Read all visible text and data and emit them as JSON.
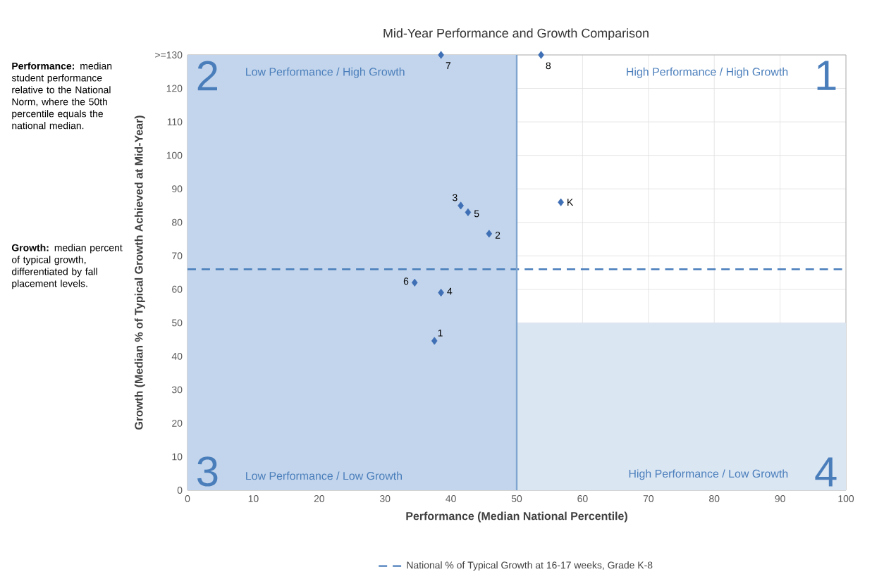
{
  "chart_data": {
    "type": "scatter",
    "title": "Mid-Year Performance and Growth Comparison",
    "xlabel": "Performance (Median National Percentile)",
    "ylabel": "Growth (Median % of Typical Growth Achieved at Mid-Year)",
    "x": [
      37.5,
      45.8,
      41.5,
      38.5,
      42.6,
      34.5,
      38.5,
      53.7,
      56.7
    ],
    "values": [
      44.6,
      76.6,
      85,
      59,
      83,
      62,
      130,
      130,
      86
    ],
    "color": "#3f6fb5",
    "marker": "diamond",
    "grid": true,
    "legend": "bottom",
    "xlim": [
      0,
      100
    ],
    "xticks": [
      0,
      10,
      20,
      30,
      40,
      50,
      60,
      70,
      80,
      90,
      100
    ],
    "ylim": [
      0,
      130
    ],
    "yticks": [
      0,
      10,
      20,
      30,
      40,
      50,
      60,
      70,
      80,
      90,
      100,
      110,
      120,
      {
        "value": 130,
        "label": ">=130"
      }
    ],
    "ref_lines": [
      {
        "axis": "y",
        "value": 66,
        "label": "National % of Typical Growth at 16-17 weeks, Grade K-8",
        "color": "#4a7ebb",
        "line_style": "dashed"
      },
      {
        "axis": "x",
        "value": 50,
        "label": null,
        "color": "#80a5cf",
        "line_style": "solid"
      }
    ],
    "bands": [
      {
        "axis": "y",
        "from": 0,
        "to": 50,
        "label": null,
        "color": "#dbe6f3"
      },
      {
        "axis": "x",
        "from": 0,
        "to": 50,
        "label": null,
        "color": "#c3d5ec"
      }
    ],
    "annotations": [
      "2",
      "Low Performance / High Growth",
      "1",
      "High Performance / High Growth",
      "3",
      "Low Performance / Low Growth",
      "4",
      "High Performance / Low Growth",
      "**Performance:** median student performance relative to the National Norm, where the 50th percentile equals the national median.",
      "**Growth:** median percent of typical growth, differentiated by fall placement levels.",
      {
        "text": "1",
        "x": 37.5,
        "y": 44.6
      },
      {
        "text": "2",
        "x": 45.8,
        "y": 76.6
      },
      {
        "text": "3",
        "x": 41.5,
        "y": 85
      },
      {
        "text": "4",
        "x": 38.5,
        "y": 59
      },
      {
        "text": "5",
        "x": 42.6,
        "y": 83
      },
      {
        "text": "6",
        "x": 34.5,
        "y": 62
      },
      {
        "text": "7",
        "x": 38.5,
        "y": 130
      },
      {
        "text": "8",
        "x": 53.7,
        "y": 130
      },
      {
        "text": "K",
        "x": 56.7,
        "y": 86
      }
    ]
  }
}
